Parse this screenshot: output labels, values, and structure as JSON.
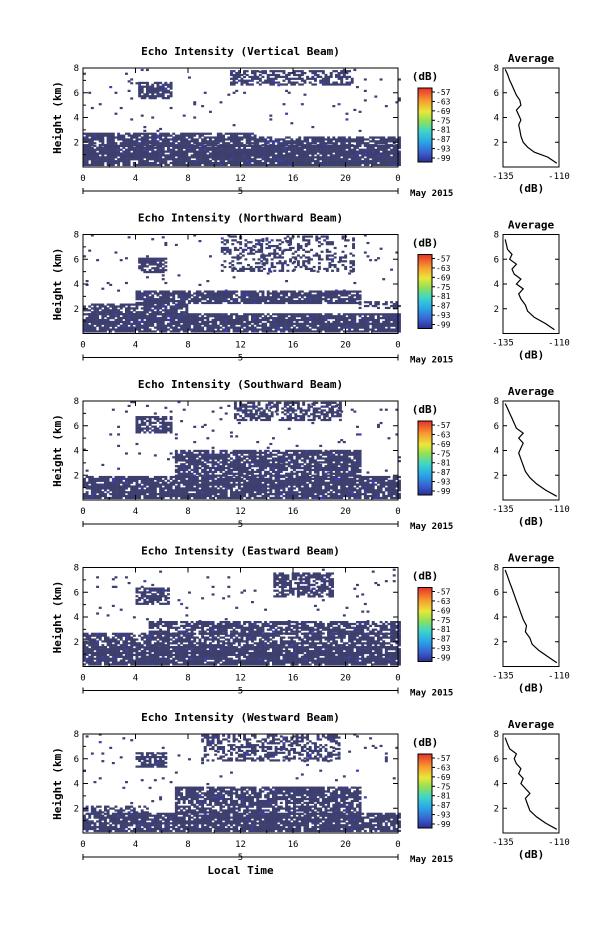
{
  "chart_data": [
    {
      "type": "heatmap",
      "title": "Echo Intensity (Vertical Beam)",
      "ylabel": "Height (km)",
      "xlim": [
        0,
        24
      ],
      "ylim": [
        0,
        8
      ],
      "xticks": [
        "0",
        "4",
        "8",
        "12",
        "16",
        "20",
        "0"
      ],
      "yticks": [
        "2",
        "4",
        "6",
        "8"
      ],
      "day_label": "5",
      "date_label": "May 2015",
      "colorbar": {
        "unit": "(dB)",
        "ticks": [
          "-57",
          "-63",
          "-69",
          "-75",
          "-81",
          "-87",
          "-93",
          "-99"
        ]
      },
      "profile": {
        "title": "Average",
        "xlabel": "(dB)",
        "xticks": [
          "-135",
          "-110"
        ],
        "yticks": [
          "2",
          "4",
          "6",
          "8"
        ],
        "xlim": [
          -135,
          -110
        ],
        "ylim": [
          0,
          8
        ],
        "heights": [
          0.3,
          0.8,
          1.2,
          1.6,
          2.0,
          2.5,
          3.0,
          3.4,
          3.8,
          4.2,
          4.6,
          5.0,
          5.4,
          5.8,
          6.2,
          6.6,
          7.0,
          7.5,
          7.9
        ],
        "values": [
          -111,
          -115,
          -121,
          -124,
          -126,
          -127,
          -127.5,
          -128,
          -127,
          -128,
          -129,
          -127,
          -127.5,
          -129,
          -130,
          -131,
          -132,
          -133,
          -134
        ]
      },
      "echo_blocks": [
        {
          "t0": 0,
          "t1": 24,
          "h0": 0.1,
          "h1": 1.7,
          "d": 0.9
        },
        {
          "t0": 0,
          "t1": 13,
          "h0": 1.7,
          "h1": 2.7,
          "d": 0.8
        },
        {
          "t0": 13,
          "t1": 24,
          "h0": 1.7,
          "h1": 2.4,
          "d": 0.75
        },
        {
          "t0": 4.2,
          "t1": 6.8,
          "h0": 5.5,
          "h1": 6.8,
          "d": 0.8
        },
        {
          "t0": 11.2,
          "t1": 20.5,
          "h0": 6.6,
          "h1": 7.8,
          "d": 0.6
        },
        {
          "t0": 0,
          "t1": 24,
          "h0": 2.7,
          "h1": 7.9,
          "d": 0.02
        }
      ]
    },
    {
      "type": "heatmap",
      "title": "Echo Intensity (Northward Beam)",
      "ylabel": "Height (km)",
      "xlim": [
        0,
        24
      ],
      "ylim": [
        0,
        8
      ],
      "xticks": [
        "0",
        "4",
        "8",
        "12",
        "16",
        "20",
        "0"
      ],
      "yticks": [
        "2",
        "4",
        "6",
        "8"
      ],
      "day_label": "5",
      "date_label": "May 2015",
      "colorbar": {
        "unit": "(dB)",
        "ticks": [
          "-57",
          "-63",
          "-69",
          "-75",
          "-81",
          "-87",
          "-93",
          "-99"
        ]
      },
      "profile": {
        "title": "Average",
        "xlabel": "(dB)",
        "xticks": [
          "-135",
          "-110"
        ],
        "yticks": [
          "2",
          "4",
          "6",
          "8"
        ],
        "xlim": [
          -135,
          -110
        ],
        "ylim": [
          0,
          8
        ],
        "heights": [
          0.3,
          0.8,
          1.3,
          1.8,
          2.3,
          2.8,
          3.2,
          3.6,
          4.0,
          4.4,
          4.8,
          5.2,
          5.6,
          6.0,
          6.4,
          6.8,
          7.2,
          7.6
        ],
        "values": [
          -112,
          -116,
          -121,
          -124,
          -125,
          -127,
          -128,
          -126,
          -129,
          -127,
          -130,
          -131,
          -129,
          -132,
          -131,
          -133,
          -133.5,
          -134
        ]
      },
      "echo_blocks": [
        {
          "t0": 0,
          "t1": 24,
          "h0": 0.1,
          "h1": 1.5,
          "d": 0.85
        },
        {
          "t0": 0,
          "t1": 8,
          "h0": 1.5,
          "h1": 2.4,
          "d": 0.75
        },
        {
          "t0": 4,
          "t1": 21,
          "h0": 2.4,
          "h1": 3.4,
          "d": 0.8
        },
        {
          "t0": 21,
          "t1": 24,
          "h0": 2.0,
          "h1": 2.6,
          "d": 0.5
        },
        {
          "t0": 4.2,
          "t1": 6.3,
          "h0": 4.9,
          "h1": 6.0,
          "d": 0.75
        },
        {
          "t0": 10.5,
          "t1": 20.5,
          "h0": 5.0,
          "h1": 7.9,
          "d": 0.35
        },
        {
          "t0": 0,
          "t1": 24,
          "h0": 3.4,
          "h1": 7.9,
          "d": 0.02
        }
      ]
    },
    {
      "type": "heatmap",
      "title": "Echo Intensity (Southward Beam)",
      "ylabel": "Height (km)",
      "xlim": [
        0,
        24
      ],
      "ylim": [
        0,
        8
      ],
      "xticks": [
        "0",
        "4",
        "8",
        "12",
        "16",
        "20",
        "0"
      ],
      "yticks": [
        "2",
        "4",
        "6",
        "8"
      ],
      "day_label": "5",
      "date_label": "May 2015",
      "colorbar": {
        "unit": "(dB)",
        "ticks": [
          "-57",
          "-63",
          "-69",
          "-75",
          "-81",
          "-87",
          "-93",
          "-99"
        ]
      },
      "profile": {
        "title": "Average",
        "xlabel": "(dB)",
        "xticks": [
          "-135",
          "-110"
        ],
        "yticks": [
          "2",
          "4",
          "6",
          "8"
        ],
        "xlim": [
          -135,
          -110
        ],
        "ylim": [
          0,
          8
        ],
        "heights": [
          0.3,
          0.8,
          1.3,
          1.8,
          2.3,
          2.8,
          3.3,
          3.8,
          4.2,
          4.6,
          5.0,
          5.4,
          5.8,
          6.2,
          6.6,
          7.0,
          7.4,
          7.8
        ],
        "values": [
          -111,
          -116,
          -120,
          -123,
          -125,
          -126,
          -127,
          -128,
          -127,
          -126,
          -128,
          -126,
          -129,
          -130,
          -131,
          -132,
          -133,
          -134
        ]
      },
      "echo_blocks": [
        {
          "t0": 0,
          "t1": 24,
          "h0": 0.1,
          "h1": 1.9,
          "d": 0.85
        },
        {
          "t0": 7,
          "t1": 21,
          "h0": 1.9,
          "h1": 3.9,
          "d": 0.8
        },
        {
          "t0": 4,
          "t1": 6.8,
          "h0": 5.4,
          "h1": 6.7,
          "d": 0.75
        },
        {
          "t0": 11.5,
          "t1": 19.5,
          "h0": 6.4,
          "h1": 7.9,
          "d": 0.55
        },
        {
          "t0": 0,
          "t1": 24,
          "h0": 2.0,
          "h1": 7.9,
          "d": 0.02
        }
      ]
    },
    {
      "type": "heatmap",
      "title": "Echo Intensity (Eastward Beam)",
      "ylabel": "Height (km)",
      "xlim": [
        0,
        24
      ],
      "ylim": [
        0,
        8
      ],
      "xticks": [
        "0",
        "4",
        "8",
        "12",
        "16",
        "20",
        "0"
      ],
      "yticks": [
        "2",
        "4",
        "6",
        "8"
      ],
      "day_label": "5",
      "date_label": "May 2015",
      "colorbar": {
        "unit": "(dB)",
        "ticks": [
          "-57",
          "-63",
          "-69",
          "-75",
          "-81",
          "-87",
          "-93",
          "-99"
        ]
      },
      "profile": {
        "title": "Average",
        "xlabel": "(dB)",
        "xticks": [
          "-135",
          "-110"
        ],
        "yticks": [
          "2",
          "4",
          "6",
          "8"
        ],
        "xlim": [
          -135,
          -110
        ],
        "ylim": [
          0,
          8
        ],
        "heights": [
          0.3,
          0.8,
          1.3,
          1.8,
          2.3,
          2.8,
          3.3,
          3.8,
          4.3,
          4.8,
          5.3,
          5.8,
          6.3,
          6.8,
          7.3,
          7.8
        ],
        "values": [
          -111,
          -115,
          -119,
          -122,
          -123,
          -125,
          -124.5,
          -126,
          -127,
          -128,
          -129,
          -130,
          -131,
          -132,
          -133,
          -134
        ]
      },
      "echo_blocks": [
        {
          "t0": 0,
          "t1": 24,
          "h0": 0.1,
          "h1": 1.5,
          "d": 0.9
        },
        {
          "t0": 0,
          "t1": 24,
          "h0": 1.5,
          "h1": 2.6,
          "d": 0.75
        },
        {
          "t0": 5,
          "t1": 24,
          "h0": 2.6,
          "h1": 3.6,
          "d": 0.75
        },
        {
          "t0": 4,
          "t1": 6.5,
          "h0": 5.0,
          "h1": 6.3,
          "d": 0.75
        },
        {
          "t0": 14.5,
          "t1": 19,
          "h0": 5.6,
          "h1": 7.6,
          "d": 0.65
        },
        {
          "t0": 0,
          "t1": 24,
          "h0": 3.6,
          "h1": 7.9,
          "d": 0.02
        }
      ]
    },
    {
      "type": "heatmap",
      "title": "Echo Intensity (Westward Beam)",
      "ylabel": "Height (km)",
      "xlim": [
        0,
        24
      ],
      "ylim": [
        0,
        8
      ],
      "xticks": [
        "0",
        "4",
        "8",
        "12",
        "16",
        "20",
        "0"
      ],
      "yticks": [
        "2",
        "4",
        "6",
        "8"
      ],
      "day_label": "5",
      "date_label": "May 2015",
      "xlabel": "Local Time",
      "colorbar": {
        "unit": "(dB)",
        "ticks": [
          "-57",
          "-63",
          "-69",
          "-75",
          "-81",
          "-87",
          "-93",
          "-99"
        ]
      },
      "profile": {
        "title": "Average",
        "xlabel": "(dB)",
        "xticks": [
          "-135",
          "-110"
        ],
        "yticks": [
          "2",
          "4",
          "6",
          "8"
        ],
        "xlim": [
          -135,
          -110
        ],
        "ylim": [
          0,
          8
        ],
        "heights": [
          0.3,
          0.8,
          1.3,
          1.8,
          2.3,
          2.8,
          3.2,
          3.6,
          4.0,
          4.4,
          4.8,
          5.2,
          5.6,
          6.0,
          6.4,
          6.8,
          7.2,
          7.7
        ],
        "values": [
          -111,
          -116,
          -120,
          -123,
          -124,
          -125,
          -123,
          -125,
          -127,
          -126,
          -128,
          -127,
          -129,
          -130,
          -129,
          -132,
          -133,
          -134
        ]
      },
      "echo_blocks": [
        {
          "t0": 0,
          "t1": 24,
          "h0": 0.1,
          "h1": 1.6,
          "d": 0.85
        },
        {
          "t0": 0,
          "t1": 5,
          "h0": 1.6,
          "h1": 2.2,
          "d": 0.6
        },
        {
          "t0": 7,
          "t1": 21,
          "h0": 1.6,
          "h1": 3.7,
          "d": 0.75
        },
        {
          "t0": 4,
          "t1": 6.3,
          "h0": 5.3,
          "h1": 6.5,
          "d": 0.75
        },
        {
          "t0": 9,
          "t1": 19.5,
          "h0": 5.8,
          "h1": 7.9,
          "d": 0.45
        },
        {
          "t0": 0,
          "t1": 24,
          "h0": 2.2,
          "h1": 7.9,
          "d": 0.02
        }
      ]
    }
  ]
}
